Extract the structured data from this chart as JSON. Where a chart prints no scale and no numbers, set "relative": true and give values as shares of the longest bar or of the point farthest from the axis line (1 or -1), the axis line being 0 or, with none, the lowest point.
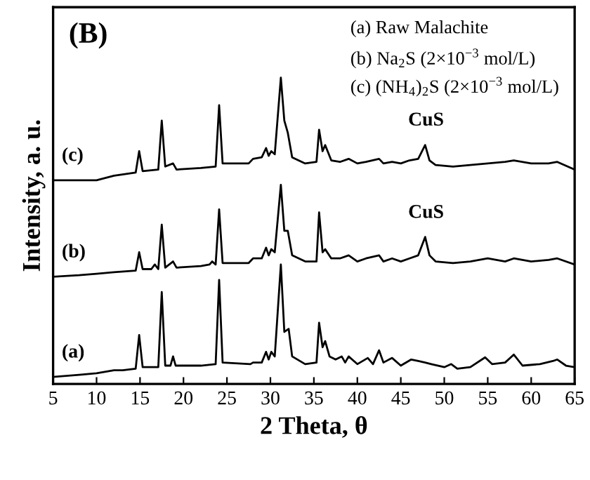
{
  "chart_data": {
    "type": "line",
    "relative": true,
    "xlabel": "2 Theta, θ",
    "ylabel": "Intensity, a. u.",
    "xlim": [
      5,
      65
    ],
    "xticks": [
      5,
      10,
      15,
      20,
      25,
      30,
      35,
      40,
      45,
      50,
      55,
      60,
      65
    ],
    "grid": false,
    "legend": false,
    "marker": "none",
    "line_style": "solid",
    "series": [
      {
        "name": "(a)",
        "color": "#000000",
        "x": [
          5,
          8,
          10,
          12,
          13,
          14.5,
          14.9,
          15.3,
          17.1,
          17.5,
          17.9,
          18.5,
          18.8,
          19.1,
          22,
          23.7,
          24.1,
          24.5,
          27.7,
          28,
          29,
          29.5,
          29.8,
          30.1,
          30.5,
          31.2,
          31.6,
          32.1,
          32.5,
          34,
          35.3,
          35.6,
          36,
          36.3,
          36.8,
          37.5,
          38.2,
          38.6,
          39,
          40,
          41.2,
          41.8,
          42.5,
          43,
          44,
          45,
          46.2,
          47,
          47.8,
          48.5,
          50,
          50.8,
          51.5,
          53,
          54.7,
          55.5,
          57,
          58,
          59,
          61,
          62.5,
          63,
          64,
          65
        ],
        "values": [
          0.023,
          0.03,
          0.035,
          0.045,
          0.045,
          0.05,
          0.16,
          0.055,
          0.055,
          0.3,
          0.06,
          0.06,
          0.09,
          0.06,
          0.06,
          0.065,
          0.34,
          0.07,
          0.065,
          0.07,
          0.07,
          0.105,
          0.08,
          0.105,
          0.09,
          0.39,
          0.17,
          0.18,
          0.09,
          0.065,
          0.07,
          0.2,
          0.12,
          0.14,
          0.09,
          0.08,
          0.09,
          0.07,
          0.09,
          0.065,
          0.085,
          0.065,
          0.11,
          0.07,
          0.085,
          0.06,
          0.08,
          0.075,
          0.07,
          0.065,
          0.055,
          0.065,
          0.05,
          0.055,
          0.087,
          0.065,
          0.07,
          0.096,
          0.06,
          0.065,
          0.075,
          0.08,
          0.06,
          0.055
        ]
      },
      {
        "name": "(b)",
        "color": "#000000",
        "x": [
          5,
          8,
          10,
          12,
          14.5,
          14.9,
          15.3,
          16.3,
          16.7,
          17.1,
          17.5,
          17.9,
          18.8,
          19.2,
          22,
          23,
          23.3,
          23.7,
          24.1,
          24.5,
          27.5,
          28,
          29,
          29.5,
          29.8,
          30.1,
          30.5,
          31.2,
          31.6,
          32,
          32.5,
          34,
          35.3,
          35.6,
          36,
          36.3,
          37,
          38,
          39,
          40,
          41,
          42.5,
          43,
          44,
          45,
          46,
          47,
          47.8,
          48.3,
          49,
          51,
          53,
          55,
          57,
          58,
          60,
          62,
          63,
          65
        ],
        "values": [
          0.35,
          0.355,
          0.36,
          0.365,
          0.37,
          0.43,
          0.375,
          0.375,
          0.39,
          0.375,
          0.52,
          0.38,
          0.4,
          0.38,
          0.385,
          0.39,
          0.4,
          0.39,
          0.57,
          0.395,
          0.395,
          0.41,
          0.41,
          0.445,
          0.42,
          0.44,
          0.43,
          0.65,
          0.5,
          0.5,
          0.42,
          0.4,
          0.4,
          0.56,
          0.43,
          0.44,
          0.41,
          0.41,
          0.42,
          0.4,
          0.41,
          0.42,
          0.4,
          0.41,
          0.4,
          0.41,
          0.42,
          0.48,
          0.42,
          0.4,
          0.395,
          0.4,
          0.41,
          0.4,
          0.41,
          0.4,
          0.405,
          0.41,
          0.39
        ]
      },
      {
        "name": "(c)",
        "color": "#000000",
        "x": [
          5,
          8,
          10,
          12,
          14.5,
          14.9,
          15.3,
          17.1,
          17.5,
          17.9,
          18.8,
          19.2,
          22,
          23.7,
          24.1,
          24.5,
          27.5,
          28,
          29,
          29.5,
          29.8,
          30.1,
          30.5,
          31.2,
          31.6,
          32,
          32.5,
          34,
          35.3,
          35.6,
          36,
          36.3,
          37,
          38,
          39,
          40,
          41,
          42.5,
          43,
          44,
          45,
          46,
          47,
          47.8,
          48.3,
          49,
          51,
          53,
          55,
          57,
          58,
          60,
          62,
          63,
          65
        ],
        "values": [
          0.665,
          0.665,
          0.665,
          0.68,
          0.69,
          0.76,
          0.695,
          0.7,
          0.86,
          0.71,
          0.72,
          0.7,
          0.705,
          0.71,
          0.91,
          0.72,
          0.72,
          0.735,
          0.74,
          0.77,
          0.745,
          0.76,
          0.75,
          1.0,
          0.86,
          0.82,
          0.74,
          0.72,
          0.725,
          0.83,
          0.76,
          0.78,
          0.73,
          0.725,
          0.735,
          0.72,
          0.725,
          0.735,
          0.72,
          0.725,
          0.72,
          0.73,
          0.735,
          0.78,
          0.73,
          0.715,
          0.71,
          0.715,
          0.72,
          0.725,
          0.73,
          0.72,
          0.72,
          0.725,
          0.7
        ]
      }
    ],
    "annotations": [
      "(B)",
      "(a) Raw Malachite",
      "(b) Na$_{2}$S (2×10$^{−3}$ mol/L)",
      "(c) (NH$_{4}$)$_{2}$S (2×10$^{−3}$ mol/L)",
      "CuS",
      "CuS"
    ]
  }
}
